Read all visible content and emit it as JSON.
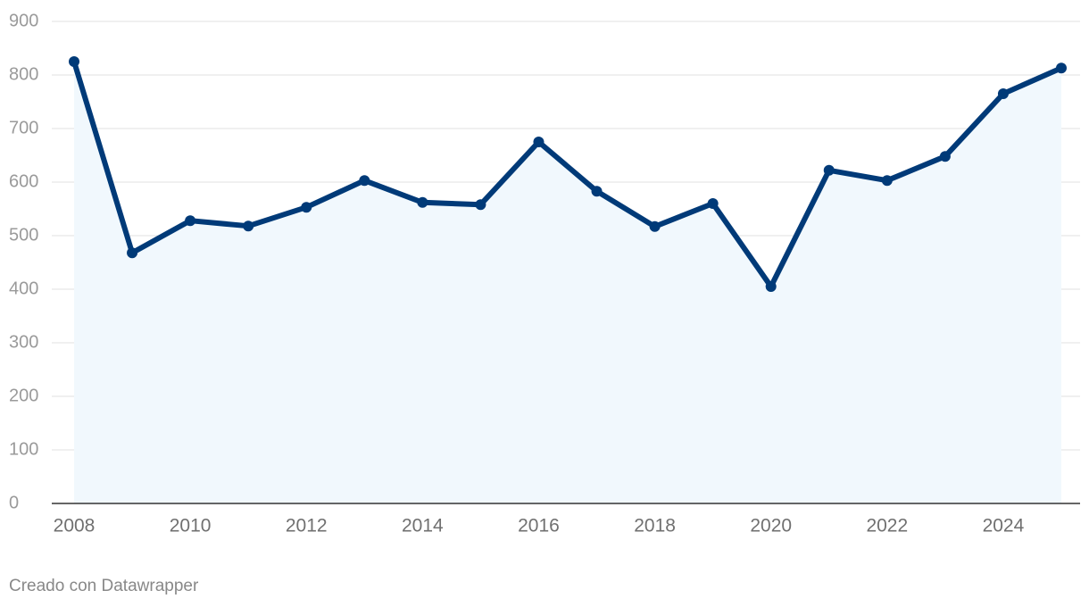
{
  "chart_data": {
    "type": "line",
    "x": [
      2008,
      2009,
      2010,
      2011,
      2012,
      2013,
      2014,
      2015,
      2016,
      2017,
      2018,
      2019,
      2020,
      2021,
      2022,
      2023,
      2024,
      2025
    ],
    "series": [
      {
        "color": "#003a78",
        "values": [
          825,
          468,
          528,
          518,
          553,
          603,
          562,
          558,
          675,
          583,
          517,
          560,
          405,
          622,
          603,
          648,
          765,
          813
        ]
      }
    ],
    "area_color": "#f1f8fd",
    "xlim": [
      2008,
      2025
    ],
    "xticks": [
      2008,
      2010,
      2012,
      2014,
      2016,
      2018,
      2020,
      2022,
      2024
    ],
    "ylim": [
      0,
      900
    ],
    "yticks": [
      0,
      100,
      200,
      300,
      400,
      500,
      600,
      700,
      800,
      900
    ],
    "grid": true,
    "credit": "Creado con Datawrapper"
  }
}
